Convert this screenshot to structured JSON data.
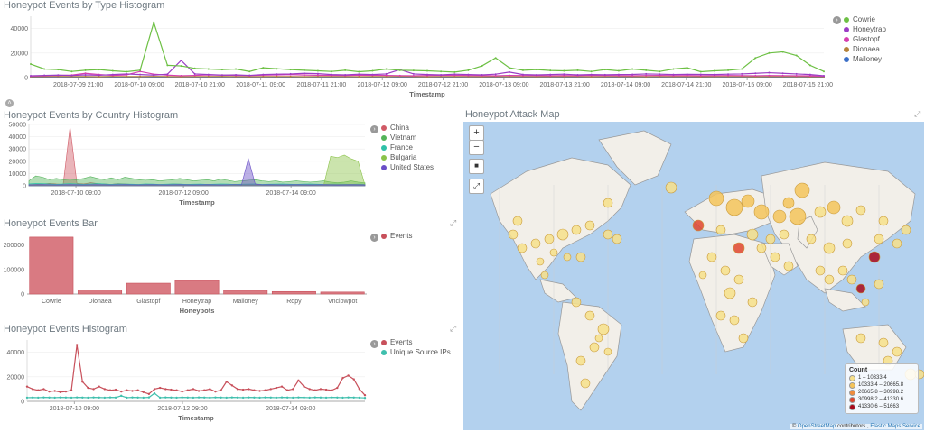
{
  "panel1": {
    "title": "Honeypot Events by Type Histogram",
    "xlabel": "Timestamp",
    "toggle_glyph": "›",
    "legend": [
      {
        "name": "Cowrie",
        "color": "#6dc044"
      },
      {
        "name": "Honeytrap",
        "color": "#9b3cc5"
      },
      {
        "name": "Glastopf",
        "color": "#d63fb0"
      },
      {
        "name": "Dionaea",
        "color": "#b5833a"
      },
      {
        "name": "Mailoney",
        "color": "#3b6fc7"
      }
    ],
    "chart_data": {
      "type": "line",
      "ylim": [
        0,
        50000
      ],
      "yticks": [
        {
          "v": 0,
          "l": "0"
        },
        {
          "v": 20000,
          "l": "20000"
        },
        {
          "v": 40000,
          "l": "40000"
        }
      ],
      "xticks": [
        "2018-07-09 21:00",
        "2018-07-10 09:00",
        "2018-07-10 21:00",
        "2018-07-11 09:00",
        "2018-07-11 21:00",
        "2018-07-12 09:00",
        "2018-07-12 21:00",
        "2018-07-13 09:00",
        "2018-07-13 21:00",
        "2018-07-14 09:00",
        "2018-07-14 21:00",
        "2018-07-15 09:00",
        "2018-07-15 21:00"
      ],
      "series": [
        {
          "name": "Cowrie",
          "color": "#6dc044",
          "values": [
            11000,
            7000,
            6500,
            5000,
            6000,
            6500,
            5500,
            4800,
            6000,
            45000,
            10000,
            9500,
            7500,
            7000,
            6500,
            7000,
            5000,
            8000,
            7200,
            6500,
            6000,
            5500,
            5000,
            6000,
            4800,
            5500,
            7000,
            6000,
            5800,
            5500,
            5000,
            4500,
            6000,
            9500,
            16000,
            8000,
            6000,
            6500,
            5800,
            5500,
            6000,
            5000,
            6500,
            5500,
            7000,
            6000,
            5000,
            7000,
            8000,
            4800,
            5500,
            6000,
            7000,
            16000,
            20000,
            21000,
            18000,
            10000,
            5000
          ]
        },
        {
          "name": "Honeytrap",
          "color": "#9b3cc5",
          "values": [
            1500,
            1800,
            2000,
            1700,
            2200,
            1900,
            2500,
            3000,
            2500,
            2000,
            2800,
            14000,
            3000,
            2500,
            2000,
            2200,
            1800,
            2500,
            2800,
            3000,
            3500,
            3200,
            2500,
            2200,
            2800,
            2500,
            3000,
            6500,
            3000,
            2500,
            2200,
            2800,
            2500,
            2200,
            2800,
            4500,
            2500,
            2200,
            2500,
            2800,
            2200,
            2500,
            2300,
            2500,
            2600,
            3000,
            2800,
            2500,
            2700,
            2600,
            2500,
            2800,
            3000,
            3500,
            4000,
            3500,
            3000,
            2500,
            1500
          ]
        },
        {
          "name": "Glastopf",
          "color": "#d63fb0",
          "values": [
            1200,
            1500,
            1800,
            2000,
            3500,
            2500,
            1800,
            2200,
            5000,
            2800,
            2000,
            1500,
            1800,
            2200,
            2000,
            1800,
            1600,
            2000,
            2200,
            2500,
            2100,
            1900,
            1800,
            1700,
            2000,
            1900,
            1800,
            1600,
            1500,
            1700,
            1800,
            1900,
            1700,
            1600,
            1500,
            1800,
            1700,
            1600,
            1500,
            1700,
            1600,
            1800,
            1700,
            1600,
            1500,
            1700,
            1800,
            1600,
            1700,
            1500,
            1600,
            1700,
            1600,
            1500,
            1700,
            1600,
            1500,
            1400,
            1200
          ]
        },
        {
          "name": "Dionaea",
          "color": "#b5833a",
          "values": [
            700,
            800,
            900,
            850,
            800,
            750,
            900,
            800,
            850,
            900,
            800,
            750,
            800,
            850,
            900,
            800,
            750,
            800,
            850,
            800,
            750,
            800,
            850,
            800,
            750,
            800,
            850,
            900,
            800,
            750,
            800,
            850,
            800,
            750,
            800,
            850,
            800,
            750,
            800,
            850,
            800,
            750,
            800,
            850,
            800,
            750,
            800,
            850,
            800,
            750,
            800,
            850,
            800,
            750,
            800,
            850,
            800,
            750,
            700
          ]
        },
        {
          "name": "Mailoney",
          "color": "#3b6fc7",
          "values": [
            400,
            450,
            500,
            480,
            450,
            500,
            480,
            450,
            500,
            480,
            450,
            500,
            480,
            450,
            500,
            480,
            450,
            500,
            480,
            450,
            500,
            480,
            450,
            500,
            480,
            450,
            500,
            480,
            450,
            500,
            480,
            450,
            500,
            480,
            450,
            500,
            480,
            450,
            500,
            480,
            450,
            500,
            480,
            450,
            500,
            480,
            450,
            500,
            480,
            450,
            500,
            480,
            450,
            500,
            480,
            450,
            500,
            480,
            400
          ]
        }
      ]
    }
  },
  "panel2": {
    "title": "Honeypot Events by Country Histogram",
    "xlabel": "Timestamp",
    "toggle_glyph": "›",
    "legend": [
      {
        "name": "China",
        "color": "#d05a66"
      },
      {
        "name": "Vietnam",
        "color": "#54b45a"
      },
      {
        "name": "France",
        "color": "#2fc1a8"
      },
      {
        "name": "Bulgaria",
        "color": "#8bc34a"
      },
      {
        "name": "United States",
        "color": "#6a4fc7"
      }
    ],
    "chart_data": {
      "type": "area",
      "ylim": [
        0,
        50000
      ],
      "yticks": [
        {
          "v": 0,
          "l": "0"
        },
        {
          "v": 10000,
          "l": "10000"
        },
        {
          "v": 20000,
          "l": "20000"
        },
        {
          "v": 30000,
          "l": "30000"
        },
        {
          "v": 40000,
          "l": "40000"
        },
        {
          "v": 50000,
          "l": "50000"
        }
      ],
      "xticks": [
        "2018-07-10 09:00",
        "2018-07-12 09:00",
        "2018-07-14 09:00"
      ],
      "series": [
        {
          "name": "China",
          "color": "#d05a66",
          "values": [
            1000,
            1200,
            1500,
            2000,
            1500,
            1200,
            48000,
            2000,
            1500,
            2500,
            1800,
            1500,
            1200,
            1800,
            1500,
            1200,
            1000,
            1300,
            1200,
            1000,
            1100,
            1500,
            1300,
            1200,
            1000,
            1100,
            1200,
            1000,
            900,
            1000,
            1200,
            1100,
            1000,
            900,
            1000,
            1200,
            1100,
            1000,
            900,
            1000,
            1100,
            1200,
            1000,
            900,
            1000,
            1200,
            1100,
            1000,
            1000,
            900
          ]
        },
        {
          "name": "Vietnam",
          "color": "#54b45a",
          "values": [
            4000,
            8000,
            7000,
            5000,
            6000,
            5000,
            4500,
            5000,
            6000,
            7500,
            6000,
            5000,
            6500,
            5000,
            7000,
            6000,
            5000,
            4500,
            5000,
            4000,
            4500,
            5000,
            6000,
            5000,
            4000,
            4500,
            5000,
            4000,
            5500,
            4500,
            3500,
            4000,
            4500,
            5000,
            4000,
            3500,
            4000,
            3000,
            3500,
            4000,
            3500,
            3000,
            3500,
            4000,
            3000,
            2500,
            3000,
            4000,
            3000,
            2500
          ]
        },
        {
          "name": "France",
          "color": "#2fc1a8",
          "values": [
            1500,
            2000,
            1800,
            1500,
            1200,
            1500,
            1800,
            1500,
            1200,
            1500,
            1800,
            1500,
            1200,
            1500,
            1400,
            1300,
            1200,
            1500,
            1400,
            1200,
            1300,
            1500,
            1400,
            1200,
            1300,
            1400,
            1200,
            1300,
            1500,
            1400,
            1200,
            1300,
            1400,
            1500,
            1200,
            1300,
            1400,
            1500,
            1300,
            1200,
            1400,
            1500,
            1300,
            1200,
            1400,
            1500,
            1300,
            1200,
            1400,
            1300
          ]
        },
        {
          "name": "Bulgaria",
          "color": "#8bc34a",
          "values": [
            500,
            600,
            500,
            700,
            600,
            500,
            600,
            700,
            600,
            500,
            600,
            700,
            600,
            500,
            600,
            700,
            600,
            500,
            600,
            700,
            600,
            500,
            600,
            700,
            600,
            500,
            600,
            700,
            600,
            500,
            600,
            700,
            600,
            500,
            600,
            700,
            600,
            500,
            600,
            700,
            600,
            500,
            600,
            700,
            24000,
            23000,
            25000,
            22000,
            20000,
            800
          ]
        },
        {
          "name": "United States",
          "color": "#6a4fc7",
          "values": [
            800,
            900,
            1000,
            900,
            800,
            900,
            1000,
            900,
            800,
            900,
            1000,
            900,
            800,
            900,
            1000,
            900,
            800,
            900,
            1000,
            900,
            800,
            900,
            1000,
            900,
            800,
            900,
            1000,
            900,
            800,
            900,
            1000,
            900,
            22000,
            1500,
            900,
            1000,
            900,
            800,
            900,
            1000,
            900,
            800,
            900,
            1000,
            900,
            800,
            900,
            1000,
            900,
            800
          ]
        }
      ]
    }
  },
  "panel3": {
    "title": "Honeypot Events Bar",
    "xlabel": "Honeypots",
    "toggle_glyph": "›",
    "legend": [
      {
        "name": "Events",
        "color": "#c8505b"
      }
    ],
    "chart_data": {
      "type": "bar",
      "categories": [
        "Cowrie",
        "Dionaea",
        "Glastopf",
        "Honeytrap",
        "Mailoney",
        "Rdpy",
        "Vnclowpot"
      ],
      "values": [
        232000,
        17000,
        44000,
        55000,
        15000,
        10000,
        8000
      ],
      "ylim": [
        0,
        250000
      ],
      "yticks": [
        {
          "v": 0,
          "l": "0"
        },
        {
          "v": 100000,
          "l": "100000"
        },
        {
          "v": 200000,
          "l": "200000"
        }
      ]
    }
  },
  "panel4": {
    "title": "Honeypot Events Histogram",
    "xlabel": "Timestamp",
    "toggle_glyph": "›",
    "legend": [
      {
        "name": "Events",
        "color": "#c8505b"
      },
      {
        "name": "Unique Source IPs",
        "color": "#3fbfad"
      }
    ],
    "chart_data": {
      "type": "line",
      "ylim": [
        0,
        50000
      ],
      "yticks": [
        {
          "v": 0,
          "l": "0"
        },
        {
          "v": 20000,
          "l": "20000"
        },
        {
          "v": 40000,
          "l": "40000"
        }
      ],
      "xticks": [
        "2018-07-10 09:00",
        "2018-07-12 09:00",
        "2018-07-14 09:00"
      ],
      "series": [
        {
          "name": "Events",
          "color": "#c8505b",
          "values": [
            12000,
            10000,
            9000,
            10000,
            8000,
            8500,
            7500,
            8000,
            9000,
            46000,
            16000,
            11000,
            10000,
            12000,
            10000,
            9000,
            9500,
            8000,
            9000,
            8500,
            9000,
            7500,
            6000,
            10000,
            11000,
            10000,
            9500,
            9000,
            8000,
            9000,
            10000,
            8500,
            9000,
            10000,
            8000,
            9000,
            16000,
            13000,
            10000,
            9500,
            10000,
            9000,
            8500,
            9000,
            10000,
            11000,
            12000,
            9000,
            10000,
            17000,
            12000,
            10000,
            9000,
            10000,
            9500,
            9000,
            11000,
            19000,
            21000,
            18000,
            10000,
            5000
          ]
        },
        {
          "name": "Unique Source IPs",
          "color": "#3fbfad",
          "values": [
            3000,
            3100,
            3000,
            3200,
            3100,
            3000,
            3200,
            3100,
            3000,
            3200,
            3100,
            3000,
            3200,
            3100,
            3000,
            3200,
            3100,
            4500,
            3000,
            3200,
            3100,
            3000,
            3200,
            6500,
            3000,
            3200,
            3100,
            3000,
            3200,
            3100,
            3000,
            3200,
            3100,
            3000,
            3200,
            3100,
            3000,
            3200,
            3100,
            3000,
            3200,
            3100,
            3000,
            3200,
            3100,
            3000,
            3200,
            3100,
            3000,
            3200,
            3100,
            3000,
            3200,
            3100,
            3000,
            3200,
            3100,
            3000,
            3200,
            3100,
            3000,
            2800
          ]
        }
      ]
    }
  },
  "map": {
    "title": "Honeypot Attack Map",
    "zoom_in": "+",
    "zoom_out": "−",
    "draw_label": "■",
    "fit_label": "⤢",
    "legend_title": "Count",
    "legend": [
      {
        "label": "1 – 10333.4",
        "color": "#f7e08a"
      },
      {
        "label": "10333.4 – 20665.8",
        "color": "#f5c45a"
      },
      {
        "label": "20665.8 – 30998.2",
        "color": "#f08c3c"
      },
      {
        "label": "30998.2 – 41330.6",
        "color": "#e0452e"
      },
      {
        "label": "41330.6 – 51663",
        "color": "#a8081a"
      }
    ],
    "attribution_prefix": "©",
    "attribution_osm": "OpenStreetMap",
    "attribution_mid": "contributors ,",
    "attribution_ems": "Elastic Maps Service"
  }
}
